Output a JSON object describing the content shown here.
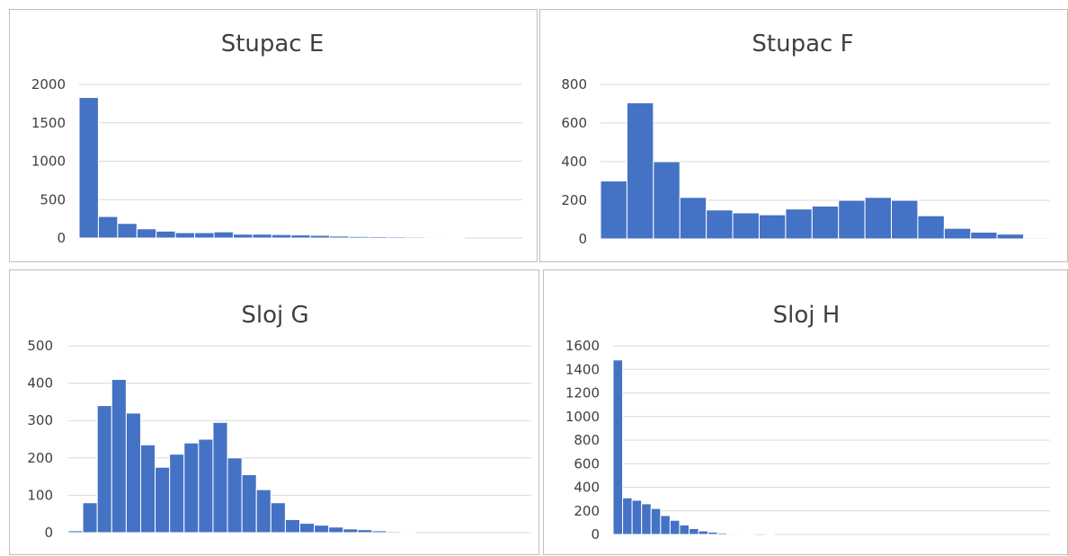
{
  "style": {
    "bar_color": "#4472c4",
    "grid_color": "#d9d9d9",
    "text_color": "#404040"
  },
  "chart_data": [
    {
      "type": "bar",
      "title": "Stupac E",
      "ylim": [
        0,
        2000
      ],
      "yticks": [
        0,
        500,
        1000,
        1500,
        2000
      ],
      "grid": true,
      "values": [
        1830,
        280,
        190,
        120,
        90,
        70,
        70,
        80,
        50,
        50,
        45,
        40,
        35,
        25,
        20,
        18,
        16,
        14,
        12,
        10,
        0,
        0,
        0
      ]
    },
    {
      "type": "bar",
      "title": "Stupac F",
      "ylim": [
        0,
        800
      ],
      "yticks": [
        0,
        200,
        400,
        600,
        800
      ],
      "grid": true,
      "values": [
        300,
        705,
        400,
        215,
        150,
        135,
        125,
        155,
        170,
        200,
        215,
        200,
        120,
        55,
        35,
        25,
        5
      ]
    },
    {
      "type": "bar",
      "title": "Sloj G",
      "ylim": [
        0,
        500
      ],
      "yticks": [
        0,
        100,
        200,
        300,
        400,
        500
      ],
      "grid": true,
      "values": [
        5,
        80,
        340,
        410,
        320,
        235,
        175,
        210,
        240,
        250,
        295,
        200,
        155,
        115,
        80,
        35,
        25,
        20,
        15,
        10,
        8,
        5,
        3,
        2,
        0,
        0,
        0,
        0,
        0,
        0,
        0,
        0
      ]
    },
    {
      "type": "bar",
      "title": "Sloj H",
      "ylim": [
        0,
        1600
      ],
      "yticks": [
        0,
        200,
        400,
        600,
        800,
        1000,
        1200,
        1400,
        1600
      ],
      "grid": true,
      "values": [
        1480,
        310,
        290,
        260,
        220,
        160,
        120,
        80,
        50,
        30,
        20,
        12,
        8,
        5,
        3,
        0,
        5,
        0,
        0,
        0,
        0,
        0,
        0,
        0,
        0,
        0,
        0,
        0,
        0,
        0,
        0,
        0,
        0,
        0,
        0,
        0,
        0,
        0,
        0,
        0,
        0,
        0,
        0,
        0,
        0,
        0
      ]
    }
  ]
}
